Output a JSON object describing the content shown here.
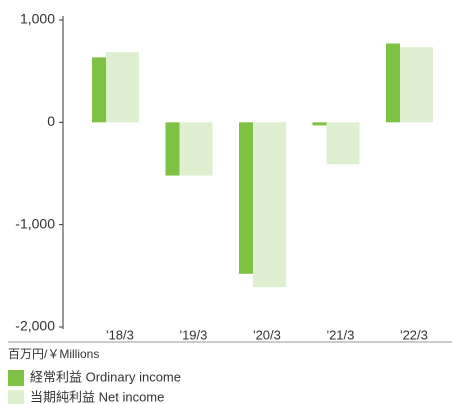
{
  "chart_data": {
    "type": "bar",
    "categories": [
      "'18/3",
      "'19/3",
      "'20/3",
      "'21/3",
      "'22/3"
    ],
    "series": [
      {
        "name": "経常利益 Ordinary income",
        "color": "#7dc242",
        "values": [
          635,
          -520,
          -1480,
          -30,
          770
        ]
      },
      {
        "name": "当期純利益 Net income",
        "color": "#dff0d0",
        "values": [
          685,
          -520,
          -1610,
          -410,
          735
        ]
      }
    ],
    "unit_label": "百万円/￥Millions",
    "ylim": [
      -2000,
      1000
    ],
    "yticks": [
      {
        "value": -2000,
        "label": "-2,000"
      },
      {
        "value": -1000,
        "label": "-1,000"
      },
      0,
      {
        "value": 1000,
        "label": "1,000"
      }
    ]
  }
}
